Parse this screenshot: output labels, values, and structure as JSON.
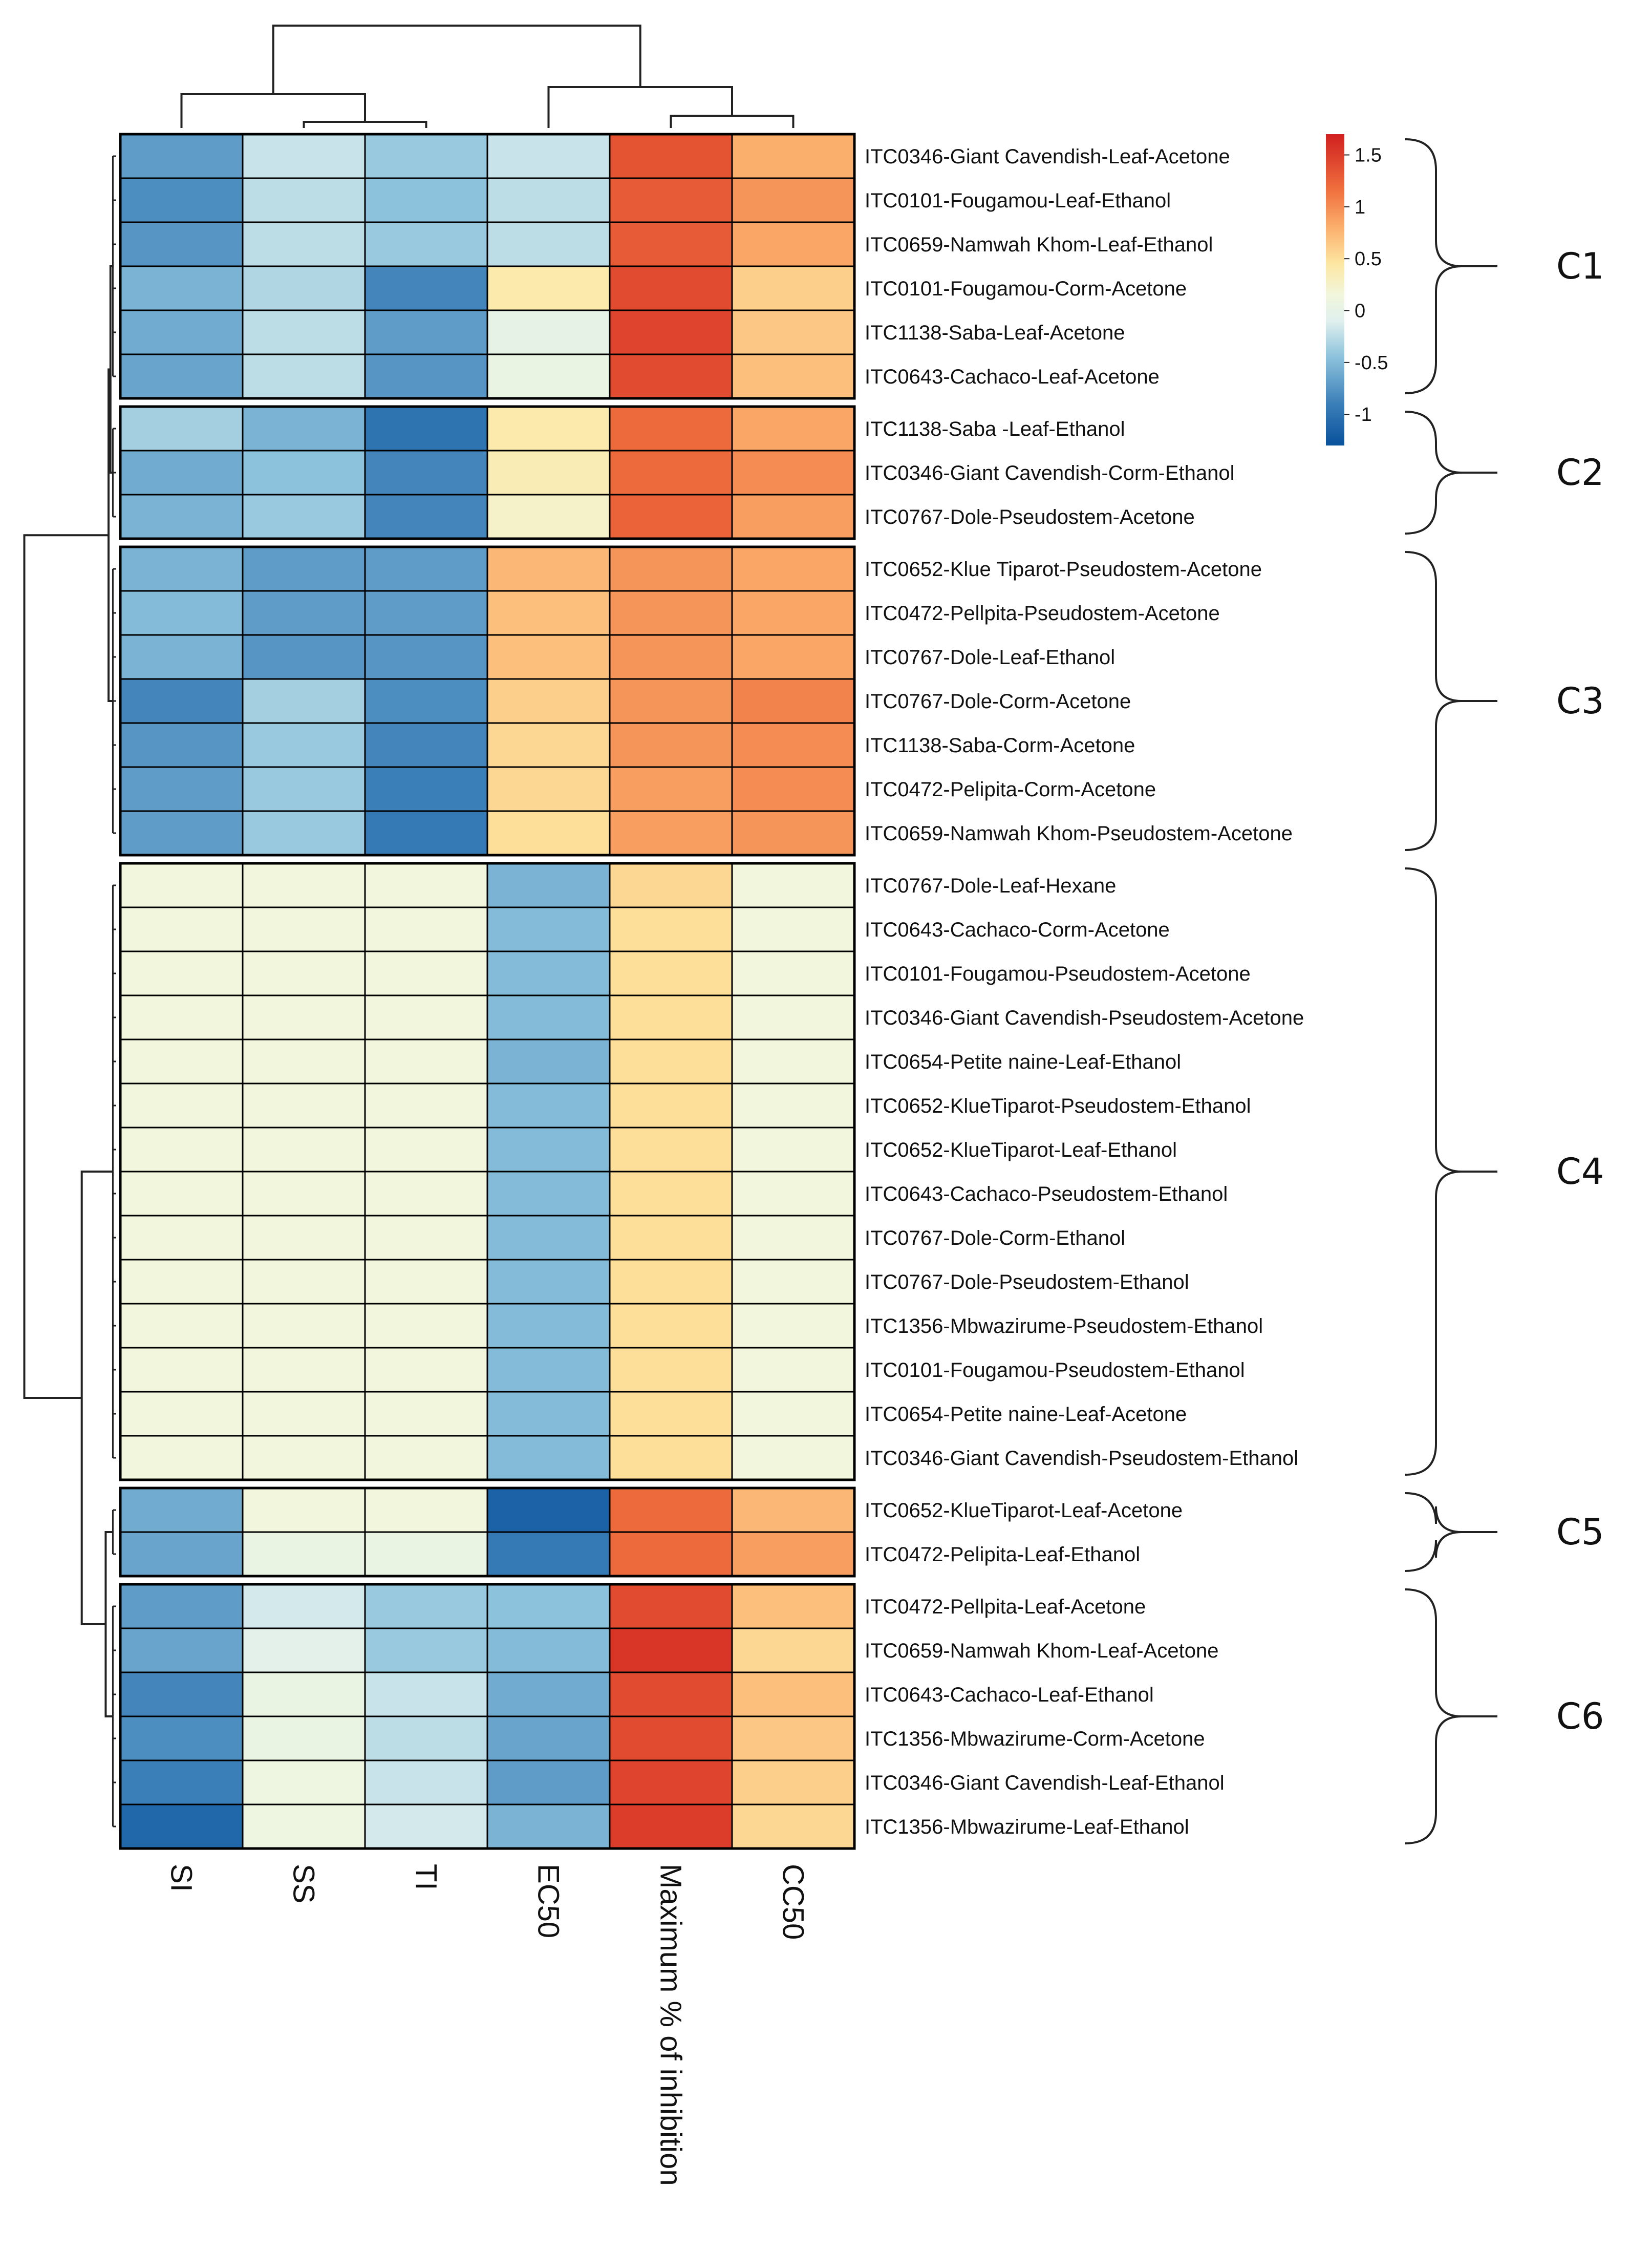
{
  "chart_data": {
    "type": "heatmap",
    "title": "",
    "columns": [
      "SI",
      "SS",
      "TI",
      "EC50",
      "Maximum % of inhibition",
      "CC50"
    ],
    "rows": [
      {
        "label": "ITC0346-Giant Cavendish-Leaf-Acetone",
        "cluster": "C1",
        "values": [
          -0.7,
          -0.2,
          -0.4,
          -0.2,
          1.35,
          0.8
        ]
      },
      {
        "label": "ITC0101-Fougamou-Leaf-Ethanol",
        "cluster": "C1",
        "values": [
          -0.8,
          -0.25,
          -0.45,
          -0.25,
          1.3,
          0.95
        ]
      },
      {
        "label": "ITC0659-Namwah Khom-Leaf-Ethanol",
        "cluster": "C1",
        "values": [
          -0.75,
          -0.25,
          -0.4,
          -0.25,
          1.3,
          0.85
        ]
      },
      {
        "label": "ITC0101-Fougamou-Corm-Acetone",
        "cluster": "C1",
        "values": [
          -0.55,
          -0.3,
          -0.85,
          0.4,
          1.4,
          0.6
        ]
      },
      {
        "label": "ITC1138-Saba-Leaf-Acetone",
        "cluster": "C1",
        "values": [
          -0.6,
          -0.25,
          -0.7,
          0.0,
          1.45,
          0.65
        ]
      },
      {
        "label": "ITC0643-Cachaco-Leaf-Acetone",
        "cluster": "C1",
        "values": [
          -0.65,
          -0.25,
          -0.75,
          0.05,
          1.4,
          0.7
        ]
      },
      {
        "label": "ITC1138-Saba -Leaf-Ethanol",
        "cluster": "C2",
        "values": [
          -0.35,
          -0.55,
          -1.0,
          0.4,
          1.2,
          0.85
        ]
      },
      {
        "label": "ITC0346-Giant Cavendish-Corm-Ethanol",
        "cluster": "C2",
        "values": [
          -0.6,
          -0.45,
          -0.85,
          0.35,
          1.2,
          1.0
        ]
      },
      {
        "label": "ITC0767-Dole-Pseudostem-Acetone",
        "cluster": "C2",
        "values": [
          -0.55,
          -0.4,
          -0.85,
          0.25,
          1.25,
          0.9
        ]
      },
      {
        "label": "ITC0652-Klue Tiparot-Pseudostem-Acetone",
        "cluster": "C3",
        "values": [
          -0.55,
          -0.7,
          -0.7,
          0.75,
          0.95,
          0.85
        ]
      },
      {
        "label": "ITC0472-Pellpita-Pseudostem-Acetone",
        "cluster": "C3",
        "values": [
          -0.5,
          -0.7,
          -0.7,
          0.7,
          0.95,
          0.85
        ]
      },
      {
        "label": "ITC0767-Dole-Leaf-Ethanol",
        "cluster": "C3",
        "values": [
          -0.55,
          -0.75,
          -0.75,
          0.7,
          0.95,
          0.85
        ]
      },
      {
        "label": "ITC0767-Dole-Corm-Acetone",
        "cluster": "C3",
        "values": [
          -0.85,
          -0.35,
          -0.8,
          0.6,
          0.95,
          1.05
        ]
      },
      {
        "label": "ITC1138-Saba-Corm-Acetone",
        "cluster": "C3",
        "values": [
          -0.75,
          -0.4,
          -0.85,
          0.55,
          0.95,
          1.0
        ]
      },
      {
        "label": "ITC0472-Pelipita-Corm-Acetone",
        "cluster": "C3",
        "values": [
          -0.7,
          -0.4,
          -0.9,
          0.55,
          0.9,
          1.0
        ]
      },
      {
        "label": "ITC0659-Namwah Khom-Pseudostem-Acetone",
        "cluster": "C3",
        "values": [
          -0.7,
          -0.4,
          -0.95,
          0.5,
          0.9,
          0.95
        ]
      },
      {
        "label": "ITC0767-Dole-Leaf-Hexane",
        "cluster": "C4",
        "values": [
          0.15,
          0.15,
          0.15,
          -0.55,
          0.55,
          0.15
        ]
      },
      {
        "label": "ITC0643-Cachaco-Corm-Acetone",
        "cluster": "C4",
        "values": [
          0.15,
          0.15,
          0.15,
          -0.5,
          0.5,
          0.15
        ]
      },
      {
        "label": "ITC0101-Fougamou-Pseudostem-Acetone",
        "cluster": "C4",
        "values": [
          0.15,
          0.15,
          0.15,
          -0.5,
          0.5,
          0.15
        ]
      },
      {
        "label": "ITC0346-Giant Cavendish-Pseudostem-Acetone",
        "cluster": "C4",
        "values": [
          0.15,
          0.15,
          0.15,
          -0.5,
          0.5,
          0.15
        ]
      },
      {
        "label": "ITC0654-Petite naine-Leaf-Ethanol",
        "cluster": "C4",
        "values": [
          0.15,
          0.15,
          0.15,
          -0.55,
          0.5,
          0.15
        ]
      },
      {
        "label": "ITC0652-KlueTiparot-Pseudostem-Ethanol",
        "cluster": "C4",
        "values": [
          0.15,
          0.15,
          0.15,
          -0.5,
          0.5,
          0.15
        ]
      },
      {
        "label": "ITC0652-KlueTiparot-Leaf-Ethanol",
        "cluster": "C4",
        "values": [
          0.15,
          0.15,
          0.15,
          -0.5,
          0.5,
          0.15
        ]
      },
      {
        "label": "ITC0643-Cachaco-Pseudostem-Ethanol",
        "cluster": "C4",
        "values": [
          0.15,
          0.15,
          0.15,
          -0.5,
          0.5,
          0.15
        ]
      },
      {
        "label": "ITC0767-Dole-Corm-Ethanol",
        "cluster": "C4",
        "values": [
          0.15,
          0.15,
          0.15,
          -0.5,
          0.5,
          0.15
        ]
      },
      {
        "label": "ITC0767-Dole-Pseudostem-Ethanol",
        "cluster": "C4",
        "values": [
          0.15,
          0.15,
          0.15,
          -0.5,
          0.5,
          0.15
        ]
      },
      {
        "label": "ITC1356-Mbwazirume-Pseudostem-Ethanol",
        "cluster": "C4",
        "values": [
          0.15,
          0.15,
          0.15,
          -0.5,
          0.5,
          0.15
        ]
      },
      {
        "label": "ITC0101-Fougamou-Pseudostem-Ethanol",
        "cluster": "C4",
        "values": [
          0.15,
          0.15,
          0.15,
          -0.5,
          0.5,
          0.15
        ]
      },
      {
        "label": "ITC0654-Petite naine-Leaf-Acetone",
        "cluster": "C4",
        "values": [
          0.15,
          0.15,
          0.15,
          -0.5,
          0.5,
          0.15
        ]
      },
      {
        "label": "ITC0346-Giant Cavendish-Pseudostem-Ethanol",
        "cluster": "C4",
        "values": [
          0.15,
          0.15,
          0.15,
          -0.5,
          0.5,
          0.15
        ]
      },
      {
        "label": "ITC0652-KlueTiparot-Leaf-Acetone",
        "cluster": "C5",
        "values": [
          -0.6,
          0.15,
          0.15,
          -1.15,
          1.2,
          0.75
        ]
      },
      {
        "label": "ITC0472-Pelipita-Leaf-Ethanol",
        "cluster": "C5",
        "values": [
          -0.65,
          0.05,
          0.05,
          -0.95,
          1.2,
          0.9
        ]
      },
      {
        "label": "ITC0472-Pellpita-Leaf-Acetone",
        "cluster": "C6",
        "values": [
          -0.7,
          -0.15,
          -0.4,
          -0.45,
          1.4,
          0.7
        ]
      },
      {
        "label": "ITC0659-Namwah Khom-Leaf-Acetone",
        "cluster": "C6",
        "values": [
          -0.65,
          -0.05,
          -0.4,
          -0.5,
          1.55,
          0.55
        ]
      },
      {
        "label": "ITC0643-Cachaco-Leaf-Ethanol",
        "cluster": "C6",
        "values": [
          -0.85,
          0.05,
          -0.2,
          -0.6,
          1.4,
          0.7
        ]
      },
      {
        "label": "ITC1356-Mbwazirume-Corm-Acetone",
        "cluster": "C6",
        "values": [
          -0.8,
          0.05,
          -0.25,
          -0.65,
          1.4,
          0.65
        ]
      },
      {
        "label": "ITC0346-Giant Cavendish-Leaf-Ethanol",
        "cluster": "C6",
        "values": [
          -0.9,
          0.1,
          -0.2,
          -0.7,
          1.45,
          0.6
        ]
      },
      {
        "label": "ITC1356-Mbwazirume-Leaf-Ethanol",
        "cluster": "C6",
        "values": [
          -1.1,
          0.1,
          -0.15,
          -0.55,
          1.5,
          0.55
        ]
      }
    ],
    "clusters": [
      "C1",
      "C2",
      "C3",
      "C4",
      "C5",
      "C6"
    ],
    "color_scale": {
      "min": -1.3,
      "max": 1.7,
      "ticks": [
        1.5,
        1,
        0.5,
        0,
        -0.5,
        -1
      ],
      "tick_labels": [
        "1.5",
        "1",
        "0.5",
        "0",
        "-0.5",
        "-1"
      ],
      "stops": [
        {
          "value": -1.3,
          "color": "#08519c"
        },
        {
          "value": -0.9,
          "color": "#3b7fb8"
        },
        {
          "value": -0.45,
          "color": "#8cc2dc"
        },
        {
          "value": -0.1,
          "color": "#e0f0ee"
        },
        {
          "value": 0.15,
          "color": "#f1f6dc"
        },
        {
          "value": 0.45,
          "color": "#fde7a2"
        },
        {
          "value": 0.8,
          "color": "#fbaf6d"
        },
        {
          "value": 1.15,
          "color": "#f0723f"
        },
        {
          "value": 1.7,
          "color": "#d01f1f"
        }
      ]
    },
    "column_dendrogram": {
      "order": [
        "SI",
        "SS",
        "TI",
        "EC50",
        "Maximum % of inhibition",
        "CC50"
      ],
      "merges": [
        [
          3,
          6,
          0.2
        ],
        [
          5,
          6,
          0.33
        ],
        [
          1,
          6,
          0.33
        ],
        [
          4,
          6,
          0.55
        ],
        [
          1,
          4,
          1.0
        ]
      ]
    },
    "row_groups_dendrogram": {
      "merges": [
        [
          "C1",
          "C2",
          0.05
        ],
        [
          "C3",
          "C1C2",
          0.15
        ],
        [
          "C5",
          "C6",
          0.2
        ],
        [
          "C4",
          "C5C6",
          0.55
        ],
        [
          "C1C2C3",
          "C4C5C6",
          1.0
        ]
      ]
    }
  }
}
